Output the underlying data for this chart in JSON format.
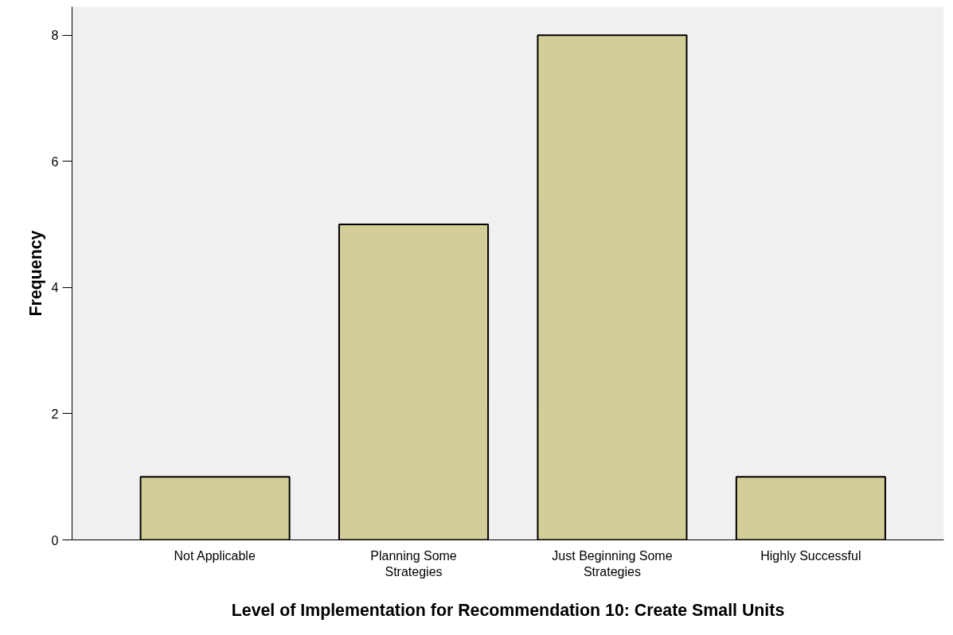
{
  "chart_data": {
    "type": "bar",
    "xlabel": "Level of Implementation for Recommendation 10: Create Small Units",
    "ylabel": "Frequency",
    "categories": [
      "Not Applicable",
      "Planning Some Strategies",
      "Just Beginning Some Strategies",
      "Highly Successful"
    ],
    "values": [
      1,
      5,
      8,
      1
    ],
    "color": "#d3ce98",
    "ylim": [
      0,
      8.45
    ],
    "yticks": [
      0,
      2,
      4,
      6,
      8
    ],
    "grid": false
  }
}
